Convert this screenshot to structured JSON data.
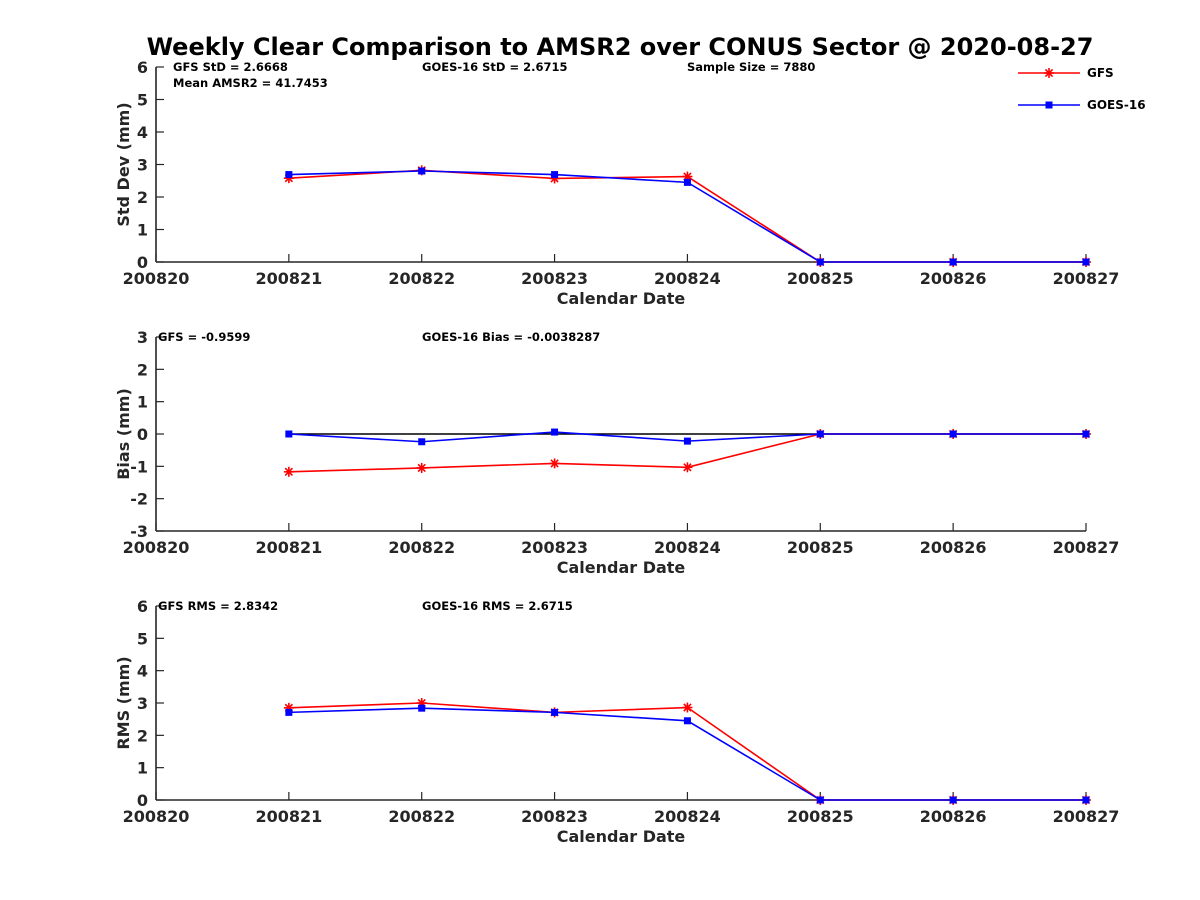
{
  "title": "Weekly Clear Comparison to AMSR2 over CONUS Sector @ 2020-08-27",
  "colors": {
    "GFS": "#ff0000",
    "GOES-16": "#0000ff",
    "axis": "#262626",
    "zero_line": "#000000"
  },
  "legend": {
    "placement": "top-right",
    "entries": [
      {
        "label": "GFS",
        "marker": "star",
        "color": "#ff0000"
      },
      {
        "label": "GOES-16",
        "marker": "square",
        "color": "#0000ff"
      }
    ]
  },
  "chart_data": [
    {
      "type": "line",
      "xlabel": "Calendar Date",
      "ylabel": "Std Dev (mm)",
      "x_ticks": [
        "200820",
        "200821",
        "200822",
        "200823",
        "200824",
        "200825",
        "200826",
        "200827"
      ],
      "y_ticks": [
        "0",
        "1",
        "2",
        "3",
        "4",
        "5",
        "6"
      ],
      "ylim": [
        0,
        6
      ],
      "grid": false,
      "zero_line": false,
      "annotations": [
        {
          "text": "GFS StD = 2.6668"
        },
        {
          "text": "GOES-16 StD = 2.6715"
        },
        {
          "text": "Sample Size = 7880"
        },
        {
          "text": "Mean AMSR2 = 41.7453"
        }
      ],
      "x": [
        "200821",
        "200822",
        "200823",
        "200824",
        "200825",
        "200826",
        "200827"
      ],
      "series": [
        {
          "name": "GFS",
          "marker": "star",
          "values": [
            2.58,
            2.82,
            2.57,
            2.63,
            0,
            0,
            0
          ]
        },
        {
          "name": "GOES-16",
          "marker": "square",
          "values": [
            2.69,
            2.8,
            2.69,
            2.45,
            0,
            0,
            0
          ]
        }
      ]
    },
    {
      "type": "line",
      "xlabel": "Calendar Date",
      "ylabel": "Bias (mm)",
      "x_ticks": [
        "200820",
        "200821",
        "200822",
        "200823",
        "200824",
        "200825",
        "200826",
        "200827"
      ],
      "y_ticks": [
        "-3",
        "-2",
        "-1",
        "0",
        "1",
        "2",
        "3"
      ],
      "ylim": [
        -3,
        3
      ],
      "grid": false,
      "zero_line": true,
      "annotations": [
        {
          "text": "GFS = -0.9599"
        },
        {
          "text": "GOES-16 Bias  = -0.0038287"
        }
      ],
      "x": [
        "200821",
        "200822",
        "200823",
        "200824",
        "200825",
        "200826",
        "200827"
      ],
      "series": [
        {
          "name": "GFS",
          "marker": "star",
          "values": [
            -1.17,
            -1.05,
            -0.91,
            -1.03,
            0,
            0,
            0
          ]
        },
        {
          "name": "GOES-16",
          "marker": "square",
          "values": [
            0.0,
            -0.24,
            0.06,
            -0.22,
            0,
            0,
            0
          ]
        }
      ]
    },
    {
      "type": "line",
      "xlabel": "Calendar Date",
      "ylabel": "RMS (mm)",
      "x_ticks": [
        "200820",
        "200821",
        "200822",
        "200823",
        "200824",
        "200825",
        "200826",
        "200827"
      ],
      "y_ticks": [
        "0",
        "1",
        "2",
        "3",
        "4",
        "5",
        "6"
      ],
      "ylim": [
        0,
        6
      ],
      "grid": false,
      "zero_line": false,
      "annotations": [
        {
          "text": "GFS RMS = 2.8342"
        },
        {
          "text": "GOES-16 RMS = 2.6715"
        }
      ],
      "x": [
        "200821",
        "200822",
        "200823",
        "200824",
        "200825",
        "200826",
        "200827"
      ],
      "series": [
        {
          "name": "GFS",
          "marker": "star",
          "values": [
            2.85,
            3.0,
            2.71,
            2.86,
            0,
            0,
            0
          ]
        },
        {
          "name": "GOES-16",
          "marker": "square",
          "values": [
            2.71,
            2.84,
            2.71,
            2.45,
            0,
            0,
            0
          ]
        }
      ]
    }
  ]
}
